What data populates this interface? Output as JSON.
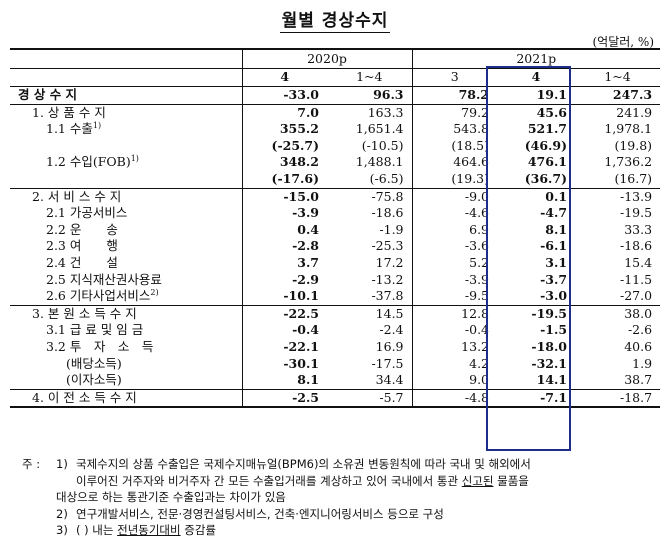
{
  "title": "월별 경상수지",
  "unit": "(억달러, %)",
  "header": {
    "year1": "2020p",
    "year2": "2021p",
    "cols": [
      "4",
      "1~4",
      "3",
      "4",
      "1~4"
    ]
  },
  "rows": [
    {
      "label": "경 상 수 지",
      "sup": "",
      "indent": 0,
      "bold": true,
      "values": [
        "-33.0",
        "96.3",
        "78.2",
        "19.1",
        "247.3"
      ]
    },
    {
      "label": "1. 상 품 수 지",
      "sup": "",
      "indent": 1,
      "bold": false,
      "values": [
        "7.0",
        "163.3",
        "79.2",
        "45.6",
        "241.9"
      ]
    },
    {
      "label": "1.1 수출",
      "sup": "1)",
      "indent": 2,
      "bold": false,
      "values": [
        "355.2",
        "1,651.4",
        "543.8",
        "521.7",
        "1,978.1"
      ]
    },
    {
      "label": "",
      "sup": "",
      "indent": 2,
      "bold": false,
      "values": [
        "(-25.7)",
        "(-10.5)",
        "(18.5)",
        "(46.9)",
        "(19.8)"
      ]
    },
    {
      "label": "1.2 수입(FOB)",
      "sup": "1)",
      "indent": 2,
      "bold": false,
      "values": [
        "348.2",
        "1,488.1",
        "464.6",
        "476.1",
        "1,736.2"
      ]
    },
    {
      "label": "",
      "sup": "",
      "indent": 2,
      "bold": false,
      "values": [
        "(-17.6)",
        "(-6.5)",
        "(19.3)",
        "(36.7)",
        "(16.7)"
      ]
    },
    {
      "label": "2. 서 비 스 수 지",
      "sup": "",
      "indent": 1,
      "bold": false,
      "values": [
        "-15.0",
        "-75.8",
        "-9.0",
        "0.1",
        "-13.9"
      ]
    },
    {
      "label": "2.1 가공서비스",
      "sup": "",
      "indent": 2,
      "bold": false,
      "values": [
        "-3.9",
        "-18.6",
        "-4.6",
        "-4.7",
        "-19.5"
      ]
    },
    {
      "label": "2.2 운　　송",
      "sup": "",
      "indent": 2,
      "bold": false,
      "values": [
        "0.4",
        "-1.9",
        "6.9",
        "8.1",
        "33.3"
      ]
    },
    {
      "label": "2.3 여　　행",
      "sup": "",
      "indent": 2,
      "bold": false,
      "values": [
        "-2.8",
        "-25.3",
        "-3.6",
        "-6.1",
        "-18.6"
      ]
    },
    {
      "label": "2.4 건　　설",
      "sup": "",
      "indent": 2,
      "bold": false,
      "values": [
        "3.7",
        "17.2",
        "5.2",
        "3.1",
        "15.4"
      ]
    },
    {
      "label": "2.5 지식재산권사용료",
      "sup": "",
      "indent": 2,
      "bold": false,
      "values": [
        "-2.9",
        "-13.2",
        "-3.9",
        "-3.7",
        "-11.5"
      ]
    },
    {
      "label": "2.6 기타사업서비스",
      "sup": "2)",
      "indent": 2,
      "bold": false,
      "values": [
        "-10.1",
        "-37.8",
        "-9.5",
        "-3.0",
        "-27.0"
      ]
    },
    {
      "label": "3. 본 원 소 득 수 지",
      "sup": "",
      "indent": 1,
      "bold": false,
      "values": [
        "-22.5",
        "14.5",
        "12.8",
        "-19.5",
        "38.0"
      ]
    },
    {
      "label": "3.1 급 료 및 임 금",
      "sup": "",
      "indent": 2,
      "bold": false,
      "values": [
        "-0.4",
        "-2.4",
        "-0.4",
        "-1.5",
        "-2.6"
      ]
    },
    {
      "label": "3.2 투　자　소　득",
      "sup": "",
      "indent": 2,
      "bold": false,
      "values": [
        "-22.1",
        "16.9",
        "13.2",
        "-18.0",
        "40.6"
      ]
    },
    {
      "label": "(배당소득)",
      "sup": "",
      "indent": 3,
      "bold": false,
      "values": [
        "-30.1",
        "-17.5",
        "4.2",
        "-32.1",
        "1.9"
      ]
    },
    {
      "label": "(이자소득)",
      "sup": "",
      "indent": 3,
      "bold": false,
      "values": [
        "8.1",
        "34.4",
        "9.0",
        "14.1",
        "38.7"
      ]
    },
    {
      "label": "4. 이 전 소 득 수 지",
      "sup": "",
      "indent": 1,
      "bold": false,
      "values": [
        "-2.5",
        "-5.7",
        "-4.8",
        "-7.1",
        "-18.7"
      ]
    }
  ],
  "notes": {
    "lead": "주 :",
    "n1_num": "1)",
    "n1_a": "국제수지의 상품 수출입은 국제수지매뉴얼(BPM6)의 소유권 변동원칙에 따라 국내 및 해외에서",
    "n1_b1": "이루어진 거주자와 비거주자 간 모든 수출입거래를 계상하고 있어 국내에서 통관 ",
    "n1_b_ul": "신고된",
    "n1_b2": " 물품을",
    "n1_c": "대상으로 하는 통관기준 수출입과는 차이가 있음",
    "n2_num": "2)",
    "n2": "연구개발서비스, 전문·경영컨설팅서비스, 건축·엔지니어링서비스 등으로 구성",
    "n3_num": "3)",
    "n3_pre": "(  ) 내는 ",
    "n3_ul": "전년동기대비",
    "n3_post": " 증감률"
  }
}
